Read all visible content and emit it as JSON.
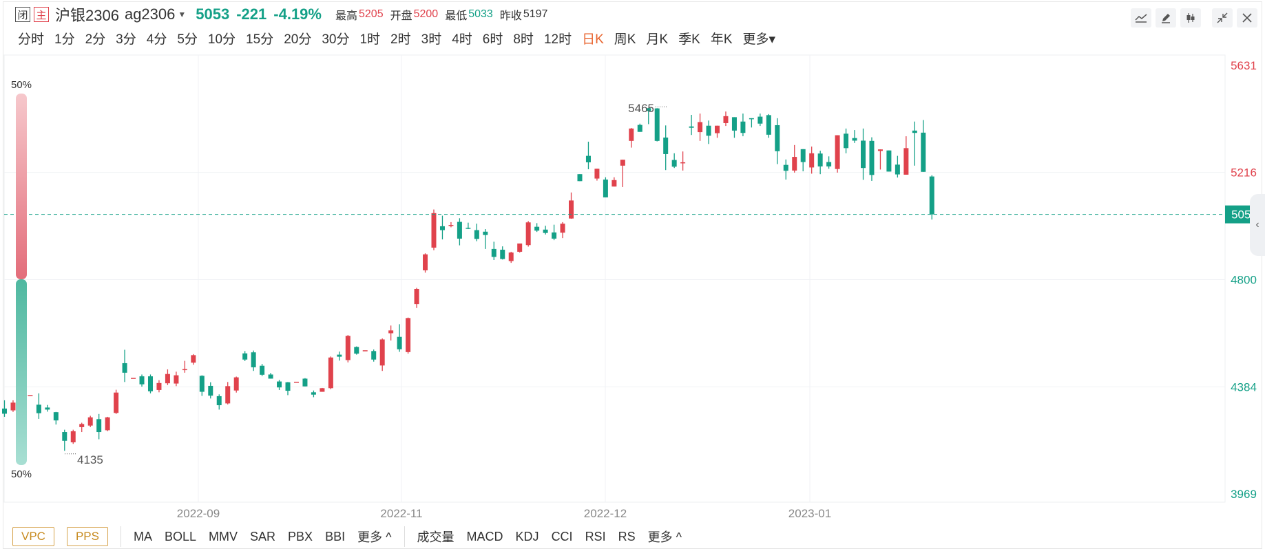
{
  "header": {
    "tag_closed": "闭",
    "tag_main": "主",
    "name": "沪银2306",
    "code": "ag2306",
    "price": "5053",
    "change": "-221",
    "change_pct": "-4.19%",
    "stats": [
      {
        "label": "最高",
        "value": "5205",
        "color": "red"
      },
      {
        "label": "开盘",
        "value": "5200",
        "color": "red"
      },
      {
        "label": "最低",
        "value": "5033",
        "color": "green"
      },
      {
        "label": "昨收",
        "value": "5197",
        "color": "plain"
      }
    ]
  },
  "toolbar_icons": [
    "line-tool-icon",
    "pen-icon",
    "candle-style-icon",
    "shrink-icon",
    "close-icon"
  ],
  "periods": [
    "分时",
    "1分",
    "2分",
    "3分",
    "4分",
    "5分",
    "10分",
    "15分",
    "20分",
    "30分",
    "1时",
    "2时",
    "3时",
    "4时",
    "6时",
    "8时",
    "12时",
    "日K",
    "周K",
    "月K",
    "季K",
    "年K",
    "更多▾"
  ],
  "active_period": "日K",
  "gauge": {
    "top_label": "50%",
    "bottom_label": "50%",
    "upper_fraction": 0.5
  },
  "chart_data": {
    "type": "candlestick",
    "y_ticks": [
      5631,
      5216,
      4800,
      4384,
      3969
    ],
    "y_tick_colors": [
      "#e0424c",
      "#e0424c",
      "#14a087",
      "#14a087",
      "#14a087"
    ],
    "ylim": [
      3969,
      5631
    ],
    "x_ticks": [
      "2022-09",
      "2022-11",
      "2022-12",
      "2023-01"
    ],
    "current_price": 5053,
    "annotations": [
      {
        "label": "5465",
        "value": 5465
      },
      {
        "label": "4135",
        "value": 4135
      }
    ],
    "colors": {
      "up": "#e0424c",
      "down": "#14a087",
      "price_line": "#14a087"
    },
    "candles": [
      [
        4300,
        4280,
        4332,
        4268
      ],
      [
        4293,
        4323,
        4332,
        4287
      ],
      [
        4320,
        4352,
        4356,
        4315
      ],
      [
        4352,
        4352,
        4352,
        4352
      ],
      [
        4315,
        4282,
        4359,
        4260
      ],
      [
        4304,
        4296,
        4314,
        4288
      ],
      [
        4286,
        4254,
        4287,
        4238
      ],
      [
        4209,
        4175,
        4218,
        4136
      ],
      [
        4169,
        4212,
        4218,
        4163
      ],
      [
        4228,
        4240,
        4245,
        4209
      ],
      [
        4234,
        4266,
        4272,
        4228
      ],
      [
        4259,
        4209,
        4279,
        4181
      ],
      [
        4216,
        4266,
        4268,
        4212
      ],
      [
        4283,
        4362,
        4373,
        4279
      ],
      [
        4476,
        4439,
        4528,
        4403
      ],
      [
        4419,
        4419,
        4419,
        4419
      ],
      [
        4425,
        4394,
        4432,
        4385
      ],
      [
        4425,
        4367,
        4432,
        4359
      ],
      [
        4372,
        4399,
        4410,
        4363
      ],
      [
        4398,
        4434,
        4452,
        4391
      ],
      [
        4397,
        4429,
        4443,
        4387
      ],
      [
        4453,
        4453,
        4485,
        4439
      ],
      [
        4478,
        4507,
        4511,
        4470
      ],
      [
        4427,
        4365,
        4429,
        4349
      ],
      [
        4388,
        4350,
        4402,
        4339
      ],
      [
        4348,
        4313,
        4355,
        4296
      ],
      [
        4320,
        4387,
        4403,
        4316
      ],
      [
        4370,
        4421,
        4424,
        4362
      ],
      [
        4514,
        4490,
        4523,
        4484
      ],
      [
        4518,
        4460,
        4525,
        4446
      ],
      [
        4466,
        4431,
        4473,
        4426
      ],
      [
        4432,
        4416,
        4438,
        4416
      ],
      [
        4405,
        4382,
        4411,
        4372
      ],
      [
        4402,
        4369,
        4403,
        4352
      ],
      [
        4404,
        4404,
        4404,
        4404
      ],
      [
        4416,
        4386,
        4418,
        4386
      ],
      [
        4363,
        4354,
        4370,
        4344
      ],
      [
        4365,
        4379,
        4380,
        4365
      ],
      [
        4379,
        4498,
        4502,
        4375
      ],
      [
        4509,
        4501,
        4521,
        4486
      ],
      [
        4488,
        4582,
        4585,
        4479
      ],
      [
        4539,
        4513,
        4541,
        4509
      ],
      [
        4526,
        4526,
        4526,
        4526
      ],
      [
        4523,
        4490,
        4529,
        4482
      ],
      [
        4467,
        4568,
        4572,
        4446
      ],
      [
        4592,
        4603,
        4622,
        4564
      ],
      [
        4578,
        4530,
        4627,
        4520
      ],
      [
        4519,
        4651,
        4653,
        4513
      ],
      [
        4705,
        4764,
        4768,
        4690
      ],
      [
        4836,
        4898,
        4902,
        4827
      ],
      [
        4924,
        5058,
        5072,
        4914
      ],
      [
        5007,
        4992,
        5048,
        4956
      ],
      [
        5010,
        5012,
        5023,
        5003
      ],
      [
        5024,
        4959,
        5038,
        4933
      ],
      [
        5001,
        4999,
        5021,
        4996
      ],
      [
        4992,
        4958,
        5017,
        4949
      ],
      [
        4986,
        4973,
        4996,
        4919
      ],
      [
        4919,
        4888,
        4947,
        4876
      ],
      [
        4916,
        4880,
        4929,
        4878
      ],
      [
        4872,
        4905,
        4908,
        4865
      ],
      [
        4908,
        4940,
        4940,
        4905
      ],
      [
        4934,
        5022,
        5027,
        4928
      ],
      [
        5005,
        4990,
        5019,
        4985
      ],
      [
        4994,
        4981,
        5009,
        4975
      ],
      [
        4983,
        4959,
        5013,
        4953
      ],
      [
        4982,
        5017,
        5023,
        4961
      ],
      [
        5037,
        5107,
        5138,
        5036
      ],
      [
        5209,
        5182,
        5209,
        5182
      ],
      [
        5280,
        5255,
        5335,
        5228
      ],
      [
        5192,
        5230,
        5219,
        5184
      ],
      [
        5188,
        5119,
        5197,
        5146
      ],
      [
        5161,
        5186,
        5197,
        5161
      ],
      [
        5242,
        5265,
        5265,
        5159
      ],
      [
        5338,
        5386,
        5388,
        5312
      ],
      [
        5400,
        5373,
        5405,
        5379
      ],
      [
        5465,
        5454,
        5465,
        5403
      ],
      [
        5464,
        5338,
        5465,
        5336
      ],
      [
        5351,
        5287,
        5398,
        5225
      ],
      [
        5264,
        5238,
        5290,
        5233
      ],
      [
        5255,
        5255,
        5297,
        5223
      ],
      [
        5394,
        5389,
        5439,
        5361
      ],
      [
        5372,
        5411,
        5444,
        5338
      ],
      [
        5397,
        5358,
        5417,
        5326
      ],
      [
        5368,
        5397,
        5395,
        5350
      ],
      [
        5407,
        5434,
        5452,
        5396
      ],
      [
        5430,
        5378,
        5417,
        5350
      ],
      [
        5413,
        5369,
        5444,
        5356
      ],
      [
        5426,
        5425,
        5409,
        5390
      ],
      [
        5432,
        5405,
        5444,
        5396
      ],
      [
        5438,
        5362,
        5442,
        5350
      ],
      [
        5399,
        5298,
        5426,
        5248
      ],
      [
        5245,
        5222,
        5266,
        5188
      ],
      [
        5223,
        5276,
        5322,
        5215
      ],
      [
        5306,
        5256,
        5305,
        5220
      ],
      [
        5235,
        5290,
        5316,
        5211
      ],
      [
        5289,
        5239,
        5300,
        5209
      ],
      [
        5256,
        5239,
        5278,
        5230
      ],
      [
        5229,
        5360,
        5352,
        5215
      ],
      [
        5366,
        5310,
        5386,
        5290
      ],
      [
        5349,
        5339,
        5380,
        5330
      ],
      [
        5339,
        5233,
        5386,
        5187
      ],
      [
        5338,
        5206,
        5352,
        5183
      ],
      [
        5299,
        5305,
        5280,
        5227
      ],
      [
        5301,
        5219,
        5297,
        5222
      ],
      [
        5246,
        5208,
        5280,
        5196
      ],
      [
        5207,
        5310,
        5356,
        5222
      ],
      [
        5378,
        5369,
        5413,
        5242
      ],
      [
        5370,
        5218,
        5419,
        5232
      ],
      [
        5200,
        5053,
        5205,
        5033
      ]
    ]
  }
}
